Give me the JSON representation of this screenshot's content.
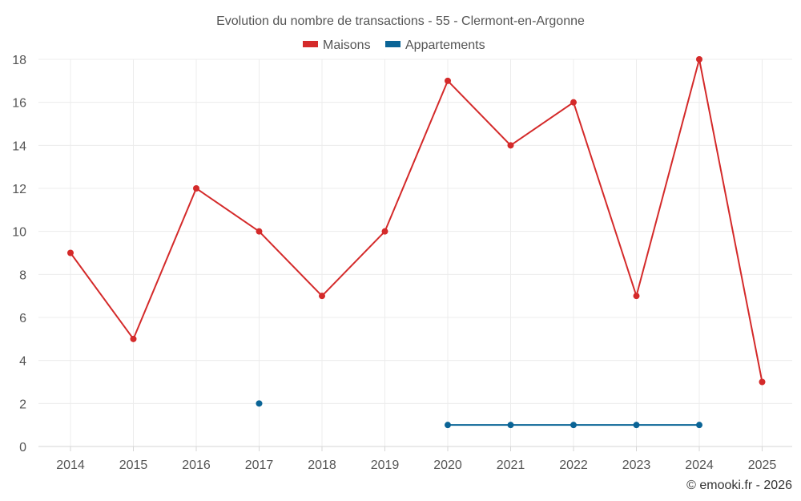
{
  "chart_data": {
    "type": "line",
    "title": "Evolution du nombre de transactions - 55 - Clermont-en-Argonne",
    "xlabel": "",
    "ylabel": "",
    "categories": [
      "2014",
      "2015",
      "2016",
      "2017",
      "2018",
      "2019",
      "2020",
      "2021",
      "2022",
      "2023",
      "2024",
      "2025"
    ],
    "ylim": [
      0,
      18
    ],
    "yticks": [
      0,
      2,
      4,
      6,
      8,
      10,
      12,
      14,
      16,
      18
    ],
    "grid": true,
    "legend_position": "top-center",
    "series": [
      {
        "name": "Maisons",
        "color": "#d42a2a",
        "values": [
          9,
          5,
          12,
          10,
          7,
          10,
          17,
          14,
          16,
          7,
          18,
          3
        ]
      },
      {
        "name": "Appartements",
        "color": "#0a6496",
        "values": [
          null,
          null,
          null,
          2,
          null,
          null,
          1,
          1,
          1,
          1,
          1,
          null
        ]
      }
    ]
  },
  "credit": "© emooki.fr - 2026"
}
